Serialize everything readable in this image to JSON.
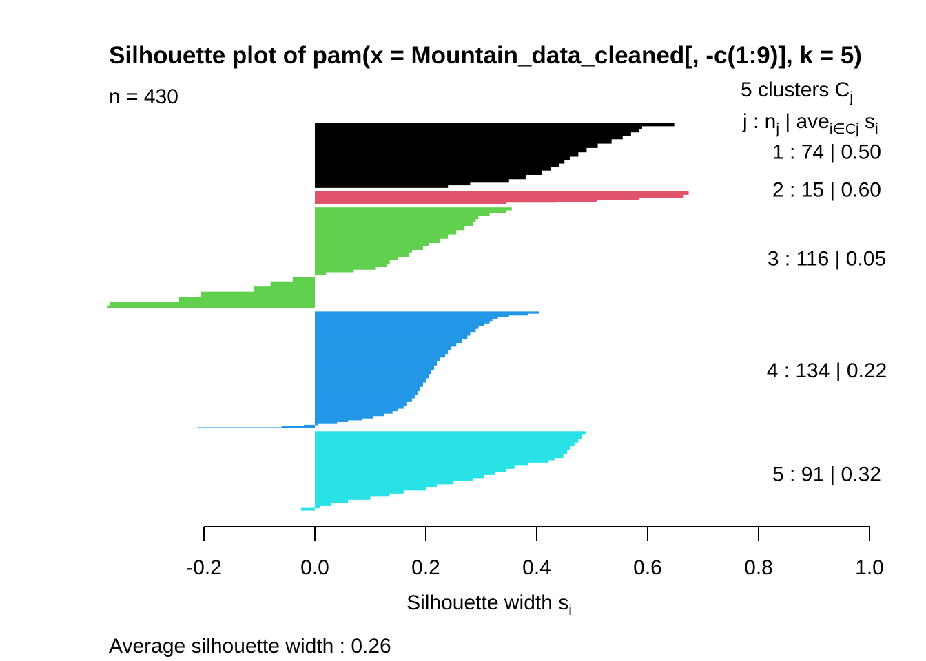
{
  "chart_data": {
    "type": "bar",
    "orientation": "horizontal",
    "title": "Silhouette plot of pam(x = Mountain_data_cleaned[, -c(1:9)], k = 5)",
    "n_label": "n = 430",
    "legend_header": {
      "count_text": "5  clusters  C",
      "count_sub": "j",
      "cols_j": "j :  n",
      "cols_j_sub": "j",
      "cols_ave": " | ave",
      "cols_ave_sub": "i∈Cj",
      "cols_s": "  s",
      "cols_s_sub": "i"
    },
    "xlabel": "Silhouette width s",
    "xlabel_sub": "i",
    "footer": "Average silhouette width :  0.26",
    "xlim": [
      -0.2,
      1.0
    ],
    "xticks": [
      "-0.2",
      "0.0",
      "0.2",
      "0.4",
      "0.6",
      "0.8",
      "1.0"
    ],
    "clusters": [
      {
        "id": 1,
        "size": 74,
        "avg": 0.5,
        "label": "1 :   74  |  0.50",
        "color": "#000000",
        "profile": [
          [
            0.648,
            3
          ],
          [
            0.59,
            3
          ],
          [
            0.585,
            4
          ],
          [
            0.57,
            4
          ],
          [
            0.555,
            4
          ],
          [
            0.535,
            5
          ],
          [
            0.51,
            5
          ],
          [
            0.49,
            5
          ],
          [
            0.475,
            5
          ],
          [
            0.46,
            4
          ],
          [
            0.45,
            4
          ],
          [
            0.44,
            4
          ],
          [
            0.425,
            4
          ],
          [
            0.41,
            5
          ],
          [
            0.38,
            5
          ],
          [
            0.35,
            4
          ],
          [
            0.28,
            3
          ],
          [
            0.24,
            3
          ]
        ]
      },
      {
        "id": 2,
        "size": 15,
        "avg": 0.6,
        "label": "2 :   15  |  0.60",
        "color": "#df536b",
        "profile": [
          [
            0.674,
            4
          ],
          [
            0.665,
            4
          ],
          [
            0.585,
            2
          ],
          [
            0.508,
            2
          ],
          [
            0.435,
            1
          ],
          [
            0.345,
            2
          ]
        ]
      },
      {
        "id": 3,
        "size": 116,
        "avg": 0.05,
        "label": "3 :   116  |  0.05",
        "color": "#61d04f",
        "profile": [
          [
            0.355,
            3
          ],
          [
            0.345,
            3
          ],
          [
            0.315,
            3
          ],
          [
            0.295,
            4
          ],
          [
            0.29,
            4
          ],
          [
            0.285,
            4
          ],
          [
            0.27,
            5
          ],
          [
            0.255,
            5
          ],
          [
            0.24,
            5
          ],
          [
            0.225,
            5
          ],
          [
            0.205,
            4
          ],
          [
            0.195,
            4
          ],
          [
            0.175,
            4
          ],
          [
            0.17,
            4
          ],
          [
            0.15,
            4
          ],
          [
            0.135,
            4
          ],
          [
            0.13,
            4
          ],
          [
            0.11,
            3
          ],
          [
            0.07,
            3
          ],
          [
            0.02,
            3
          ],
          [
            0.0,
            3
          ],
          [
            -0.04,
            5
          ],
          [
            -0.08,
            6
          ],
          [
            -0.11,
            6
          ],
          [
            -0.205,
            6
          ],
          [
            -0.245,
            6
          ],
          [
            -0.37,
            4
          ],
          [
            -0.375,
            3
          ]
        ]
      },
      {
        "id": 4,
        "size": 134,
        "avg": 0.22,
        "label": "4 :   134  |  0.22",
        "color": "#2297e6",
        "profile": [
          [
            0.405,
            3
          ],
          [
            0.385,
            3
          ],
          [
            0.35,
            3
          ],
          [
            0.33,
            3
          ],
          [
            0.32,
            3
          ],
          [
            0.315,
            4
          ],
          [
            0.305,
            4
          ],
          [
            0.295,
            5
          ],
          [
            0.29,
            5
          ],
          [
            0.28,
            6
          ],
          [
            0.275,
            6
          ],
          [
            0.265,
            6
          ],
          [
            0.255,
            6
          ],
          [
            0.245,
            6
          ],
          [
            0.24,
            6
          ],
          [
            0.235,
            6
          ],
          [
            0.225,
            6
          ],
          [
            0.22,
            7
          ],
          [
            0.215,
            7
          ],
          [
            0.21,
            7
          ],
          [
            0.205,
            7
          ],
          [
            0.2,
            7
          ],
          [
            0.195,
            7
          ],
          [
            0.19,
            7
          ],
          [
            0.185,
            6
          ],
          [
            0.18,
            6
          ],
          [
            0.175,
            6
          ],
          [
            0.165,
            6
          ],
          [
            0.16,
            5
          ],
          [
            0.15,
            4
          ],
          [
            0.14,
            4
          ],
          [
            0.125,
            4
          ],
          [
            0.105,
            4
          ],
          [
            0.085,
            3
          ],
          [
            0.06,
            3
          ],
          [
            0.04,
            3
          ],
          [
            0.005,
            2
          ],
          [
            -0.02,
            2
          ],
          [
            -0.06,
            2
          ],
          [
            -0.21,
            1
          ]
        ]
      },
      {
        "id": 5,
        "size": 91,
        "avg": 0.32,
        "label": "5 :   91  |  0.32",
        "color": "#28e2e5",
        "profile": [
          [
            0.488,
            4
          ],
          [
            0.482,
            5
          ],
          [
            0.475,
            5
          ],
          [
            0.468,
            5
          ],
          [
            0.46,
            5
          ],
          [
            0.455,
            5
          ],
          [
            0.448,
            5
          ],
          [
            0.432,
            3
          ],
          [
            0.42,
            3
          ],
          [
            0.385,
            4
          ],
          [
            0.36,
            4
          ],
          [
            0.345,
            4
          ],
          [
            0.325,
            4
          ],
          [
            0.305,
            4
          ],
          [
            0.285,
            4
          ],
          [
            0.25,
            4
          ],
          [
            0.22,
            4
          ],
          [
            0.2,
            4
          ],
          [
            0.16,
            4
          ],
          [
            0.135,
            4
          ],
          [
            0.1,
            4
          ],
          [
            0.06,
            4
          ],
          [
            0.03,
            4
          ],
          [
            0.01,
            3
          ],
          [
            -0.025,
            3
          ]
        ]
      }
    ]
  }
}
